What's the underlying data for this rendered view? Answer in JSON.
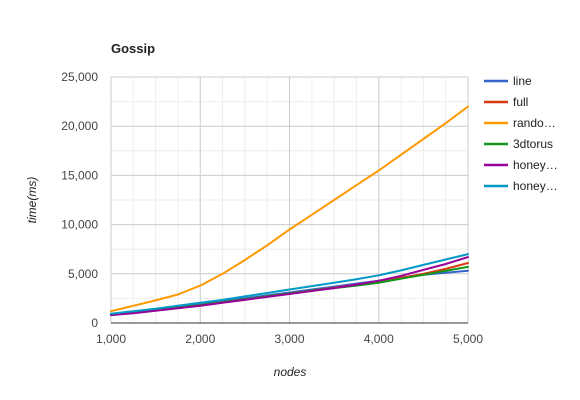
{
  "chart_data": {
    "type": "line",
    "title": "Gossip",
    "xlabel": "nodes",
    "ylabel": "time(ms)",
    "x": [
      1000,
      1250,
      1500,
      1750,
      2000,
      2250,
      2500,
      2750,
      3000,
      3250,
      3500,
      3750,
      4000,
      4250,
      4500,
      4750,
      5000
    ],
    "xlim": [
      1000,
      5000
    ],
    "ylim": [
      0,
      25000
    ],
    "x_ticks": [
      1000,
      2000,
      3000,
      4000,
      5000
    ],
    "y_ticks": [
      0,
      5000,
      10000,
      15000,
      20000,
      25000
    ],
    "x_tick_labels": [
      "1,000",
      "2,000",
      "3,000",
      "4,000",
      "5,000"
    ],
    "y_tick_labels": [
      "0",
      "5,000",
      "10,000",
      "15,000",
      "20,000",
      "25,000"
    ],
    "grid": true,
    "legend_position": "right",
    "series": [
      {
        "name": "line",
        "color": "#3366cc",
        "values": [
          900,
          1100,
          1350,
          1600,
          1900,
          2200,
          2500,
          2800,
          3100,
          3400,
          3700,
          4000,
          4300,
          4600,
          4900,
          5100,
          5300
        ]
      },
      {
        "name": "full",
        "color": "#dc3912",
        "values": [
          850,
          1050,
          1300,
          1550,
          1800,
          2100,
          2400,
          2700,
          3000,
          3300,
          3600,
          3900,
          4200,
          4600,
          5000,
          5500,
          6100
        ]
      },
      {
        "name": "rando…",
        "color": "#ff9900",
        "values": [
          1200,
          1750,
          2300,
          2900,
          3800,
          5000,
          6400,
          7900,
          9500,
          11000,
          12500,
          14000,
          15500,
          17100,
          18700,
          20300,
          22000
        ]
      },
      {
        "name": "3dtorus",
        "color": "#109618",
        "values": [
          850,
          1050,
          1300,
          1550,
          1800,
          2100,
          2400,
          2700,
          3000,
          3300,
          3550,
          3800,
          4100,
          4500,
          4900,
          5300,
          5700
        ]
      },
      {
        "name": "honey…",
        "color": "#990099",
        "values": [
          800,
          1000,
          1250,
          1500,
          1750,
          2050,
          2350,
          2650,
          2950,
          3250,
          3550,
          3900,
          4300,
          4800,
          5400,
          6000,
          6700
        ]
      },
      {
        "name": "honey…",
        "color": "#0099c6",
        "values": [
          950,
          1200,
          1450,
          1750,
          2050,
          2350,
          2700,
          3050,
          3400,
          3750,
          4100,
          4450,
          4850,
          5350,
          5900,
          6450,
          7000
        ]
      }
    ]
  }
}
